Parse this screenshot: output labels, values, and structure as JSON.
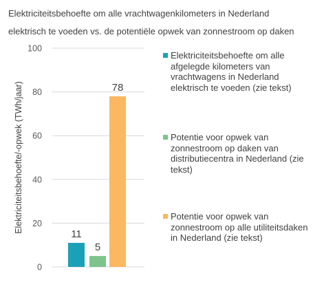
{
  "title_lines": [
    "Elektriciteitsbehoefte  om alle vrachtwagenkilometers  in Nederland",
    "elektrisch  te voeden vs. de potentiële opwek van zonnestroom op daken"
  ],
  "chart_data": {
    "type": "bar",
    "ylabel": "Elektriciteitsbehoefte/-opwek  (TWh/jaar)",
    "ylim": [
      0,
      100
    ],
    "yticks": [
      0,
      20,
      40,
      60,
      80,
      100
    ],
    "grid": true,
    "legend_position": "right",
    "series": [
      {
        "name": "Elektriciteitsbehoefte om alle afgelegde kilometers van vrachtwagens in Nederland elektrisch te voeden (zie tekst)",
        "value": 11,
        "label": "11",
        "color": "#1aa1b8"
      },
      {
        "name": "Potentie voor opwek van zonnestroom op daken van distributiecentra in Nederland (zie tekst)",
        "value": 5,
        "label": "5",
        "color": "#7dc48a"
      },
      {
        "name": "Potentie voor opwek van zonnestroom op alle utiliteitsdaken in Nederland (zie tekst)",
        "value": 78,
        "label": "78",
        "color": "#fbb860"
      }
    ]
  }
}
